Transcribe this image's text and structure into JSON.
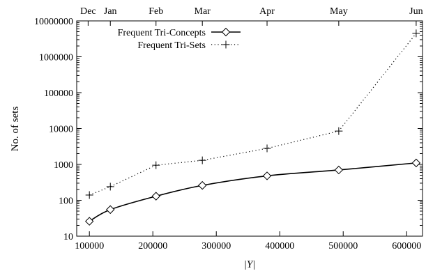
{
  "chart_data": {
    "type": "line",
    "title": "",
    "xlabel": "|Y|",
    "ylabel": "No. of sets",
    "xlim": [
      80000,
      625000
    ],
    "ylim": [
      10,
      10000000
    ],
    "y_scale": "log",
    "grid": false,
    "legend_position": "top-left",
    "x_ticks": [
      100000,
      200000,
      300000,
      400000,
      500000,
      600000
    ],
    "x_tick_labels": [
      "100000",
      "200000",
      "300000",
      "400000",
      "500000",
      "600000"
    ],
    "y_ticks": [
      10,
      100,
      1000,
      10000,
      100000,
      1000000,
      10000000
    ],
    "y_tick_labels": [
      "10",
      "100",
      "1000",
      "10000",
      "100000",
      "1000000",
      "10000000"
    ],
    "top_axis": {
      "labels": [
        "Dec",
        "Jan",
        "Feb",
        "Mar",
        "Apr",
        "May",
        "Jun"
      ],
      "x": [
        98000,
        133000,
        205000,
        278000,
        380000,
        493000,
        615000
      ]
    },
    "series": [
      {
        "name": "Frequent Tri-Concepts",
        "style": "solid",
        "marker": "diamond",
        "color": "#000000",
        "x": [
          100000,
          133000,
          205000,
          278000,
          380000,
          493000,
          615000
        ],
        "y": [
          26,
          55,
          130,
          260,
          480,
          700,
          1100
        ]
      },
      {
        "name": "Frequent Tri-Sets",
        "style": "dotted",
        "marker": "plus",
        "color": "#000000",
        "x": [
          100000,
          133000,
          205000,
          278000,
          380000,
          493000,
          615000
        ],
        "y": [
          140,
          240,
          950,
          1300,
          2800,
          8500,
          4500000
        ]
      }
    ]
  }
}
